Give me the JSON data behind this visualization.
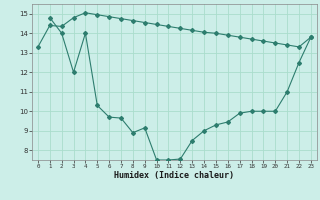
{
  "xlabel": "Humidex (Indice chaleur)",
  "bg_color": "#cceee8",
  "grid_color": "#aaddcc",
  "line_color": "#2d7d6e",
  "line1_x": [
    0,
    1,
    2,
    3,
    4,
    5,
    6,
    7,
    8,
    9,
    10,
    11,
    12,
    13,
    14,
    15,
    16,
    17,
    18,
    19,
    20,
    21,
    22,
    23
  ],
  "line1_y": [
    13.3,
    14.4,
    14.35,
    14.8,
    15.05,
    14.95,
    14.85,
    14.75,
    14.65,
    14.55,
    14.45,
    14.35,
    14.25,
    14.15,
    14.05,
    14.0,
    13.9,
    13.8,
    13.7,
    13.6,
    13.5,
    13.4,
    13.3,
    13.8
  ],
  "line2_x": [
    1,
    2,
    3,
    4,
    5,
    6,
    7,
    8,
    9,
    10,
    11,
    12,
    13,
    14,
    15,
    16,
    17,
    18,
    19,
    20,
    21,
    22,
    23
  ],
  "line2_y": [
    14.8,
    14.0,
    12.0,
    14.0,
    10.3,
    9.7,
    9.65,
    8.9,
    9.15,
    7.5,
    7.5,
    7.55,
    8.5,
    9.0,
    9.3,
    9.45,
    9.9,
    10.0,
    10.0,
    10.0,
    11.0,
    12.5,
    13.8
  ],
  "xlim": [
    -0.5,
    23.5
  ],
  "ylim_min": 7.5,
  "ylim_max": 15.5,
  "yticks": [
    8,
    9,
    10,
    11,
    12,
    13,
    14,
    15
  ],
  "xticks": [
    0,
    1,
    2,
    3,
    4,
    5,
    6,
    7,
    8,
    9,
    10,
    11,
    12,
    13,
    14,
    15,
    16,
    17,
    18,
    19,
    20,
    21,
    22,
    23
  ]
}
